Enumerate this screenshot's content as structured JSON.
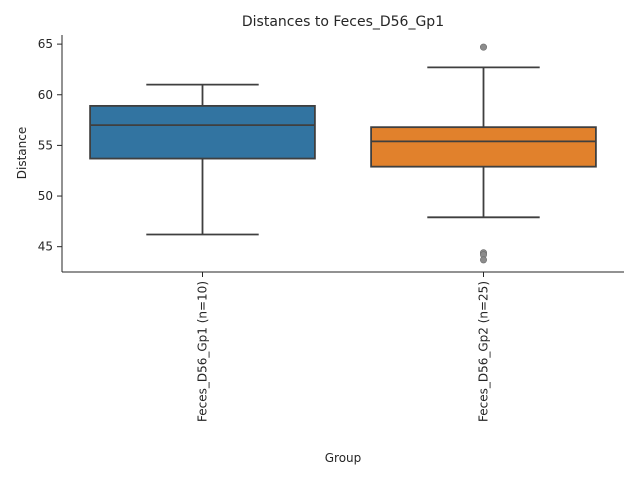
{
  "chart_data": {
    "type": "box",
    "title": "Distances to Feces_D56_Gp1",
    "xlabel": "Group",
    "ylabel": "Distance",
    "ylim": [
      42.5,
      65.9
    ],
    "yticks": [
      45,
      50,
      55,
      60,
      65
    ],
    "grid": false,
    "x_tick_rotation": "vertical",
    "categories": [
      "Feces_D56_Gp1 (n=10)",
      "Feces_D56_Gp2 (n=25)"
    ],
    "boxes": [
      {
        "category": "Feces_D56_Gp1 (n=10)",
        "whisker_low": 46.2,
        "q1": 53.7,
        "median": 57.0,
        "q3": 58.9,
        "whisker_high": 61.0,
        "outliers": [],
        "color": "#3274a1"
      },
      {
        "category": "Feces_D56_Gp2 (n=25)",
        "whisker_low": 47.9,
        "q1": 52.9,
        "median": 55.4,
        "q3": 56.8,
        "whisker_high": 62.7,
        "outliers": [
          64.7,
          44.4,
          44.2,
          43.7
        ],
        "color": "#e1812c"
      }
    ],
    "line_color": "#3f3f3f",
    "outlier_color": "#8c8c8c"
  }
}
